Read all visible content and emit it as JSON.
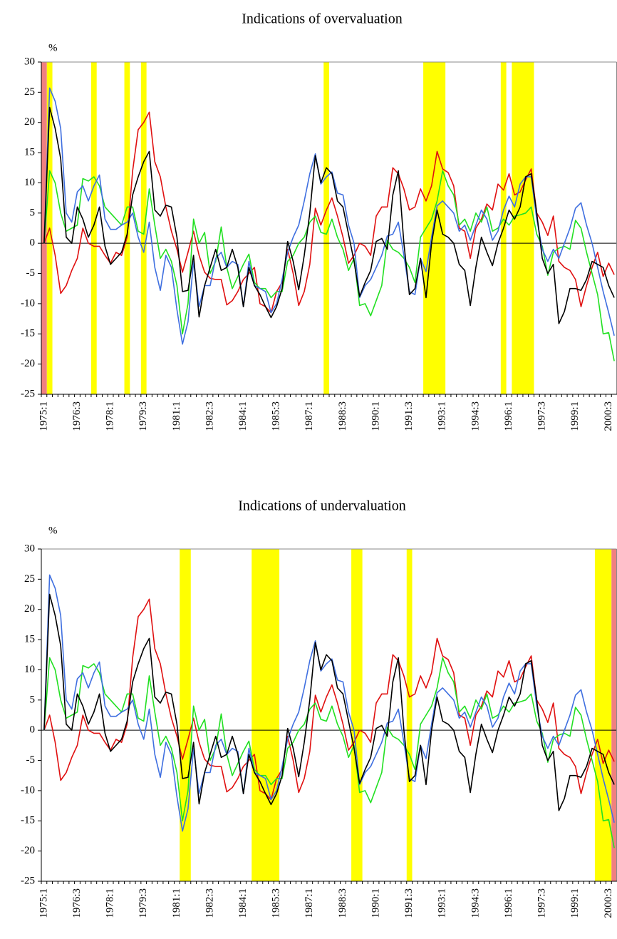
{
  "chart_data": [
    {
      "type": "line",
      "title": "Indications of overvaluation",
      "y_label": "%",
      "categories": [
        "1975:1",
        null,
        null,
        null,
        null,
        null,
        "1976:3",
        null,
        null,
        null,
        null,
        null,
        "1978:1",
        null,
        null,
        null,
        null,
        null,
        "1979:3",
        null,
        null,
        null,
        null,
        null,
        "1981:1",
        null,
        null,
        null,
        null,
        null,
        "1982:3",
        null,
        null,
        null,
        null,
        null,
        "1984:1",
        null,
        null,
        null,
        null,
        null,
        "1985:3",
        null,
        null,
        null,
        null,
        null,
        "1987:1",
        null,
        null,
        null,
        null,
        null,
        "1988:3",
        null,
        null,
        null,
        null,
        null,
        "1990:1",
        null,
        null,
        null,
        null,
        null,
        "1991:3",
        null,
        null,
        null,
        null,
        null,
        "1993:1",
        null,
        null,
        null,
        null,
        null,
        "1994:3",
        null,
        null,
        null,
        null,
        null,
        "1996:1",
        null,
        null,
        null,
        null,
        null,
        "1997:3",
        null,
        null,
        null,
        null,
        null,
        "1999:1",
        null,
        null,
        null,
        null,
        null,
        "2000:3",
        null
      ],
      "series": [
        {
          "color": "#e01010",
          "values": [
            0,
            2.5,
            -2,
            -8.3,
            -7,
            -4.5,
            -2.5,
            2.5,
            0,
            -0.5,
            -0.5,
            -2,
            -3.3,
            -1.5,
            -2,
            1,
            12,
            18.8,
            20,
            21.7,
            13.5,
            11,
            6,
            2,
            -1,
            -4.8,
            -1.5,
            2,
            -2,
            -4.8,
            -5.8,
            -6,
            -6,
            -10.2,
            -9.5,
            -8,
            -6,
            -5,
            -4,
            -10,
            -10.5,
            -11.5,
            -8,
            -6.5,
            -1,
            -5,
            -10.3,
            -8,
            -3.5,
            5.8,
            3,
            5.5,
            7.5,
            4.5,
            1,
            -3.3,
            -2,
            0,
            -0.5,
            -2,
            4.5,
            6,
            6,
            12.5,
            11.5,
            9,
            5.5,
            6,
            9,
            7,
            9.5,
            15.2,
            12.3,
            11.7,
            9.5,
            2.5,
            2,
            -2.5,
            2.5,
            4,
            6.5,
            5.5,
            9.8,
            8.8,
            11.5,
            8,
            8.5,
            10.5,
            12.3,
            5,
            3.5,
            1.3,
            4.5,
            -3,
            -4,
            -4.5,
            -6,
            -10.5,
            -7,
            -4,
            -1.5,
            -5.5,
            -3.3,
            -5.2
          ]
        },
        {
          "color": "#22e022",
          "values": [
            0,
            12,
            10,
            5,
            2,
            2.5,
            3,
            10.7,
            10.3,
            11,
            9.5,
            6,
            5,
            4,
            3,
            6,
            6,
            2,
            1.5,
            9,
            3,
            -2.5,
            -1,
            -3,
            -7,
            -15,
            -10,
            4,
            0,
            1.8,
            -5,
            -3,
            2.7,
            -4,
            -7.5,
            -5.5,
            -3.5,
            -1.8,
            -6.5,
            -7.5,
            -7.5,
            -9,
            -8,
            -8,
            -3,
            -2,
            0,
            1,
            3.5,
            4.5,
            1.8,
            1.5,
            4,
            1,
            -1,
            -4.5,
            -2.5,
            -10.3,
            -10,
            -12,
            -9.5,
            -7,
            0.5,
            -1,
            -1.5,
            -2.5,
            -4,
            -6.5,
            1,
            2.5,
            4,
            7,
            12,
            9.5,
            8,
            3,
            4,
            2,
            5,
            3.5,
            6,
            2,
            2.5,
            4,
            3,
            4.5,
            4.7,
            5,
            6,
            1.5,
            -0.5,
            -5.3,
            -1.5,
            -0.8,
            -0.5,
            -1,
            3.8,
            2.5,
            -1.5,
            -5,
            -8.5,
            -15,
            -14.8,
            -19.5
          ]
        },
        {
          "color": "#3f6fe0",
          "values": [
            0,
            25.7,
            23.5,
            19,
            5,
            3.5,
            8.5,
            9.5,
            7,
            9.5,
            11.3,
            4,
            2.3,
            2.3,
            3,
            3.5,
            5,
            1,
            -1.5,
            3.5,
            -4,
            -7.8,
            -2,
            -4,
            -11,
            -16.7,
            -13,
            -3,
            -10.5,
            -7,
            -7,
            -2.5,
            -1.5,
            -4,
            -3,
            -3.5,
            -10.5,
            -3,
            -7,
            -7.5,
            -8,
            -11.5,
            -10,
            -6,
            -1.5,
            1,
            3,
            7,
            11.5,
            14.8,
            9.8,
            11,
            11.8,
            8.3,
            8,
            3,
            0,
            -9,
            -7,
            -6,
            -4,
            -2,
            1.2,
            1.5,
            3.5,
            -2,
            -8,
            -8.5,
            -2.5,
            -4.7,
            1,
            6.2,
            7,
            6,
            5,
            2,
            3,
            0.5,
            3,
            5.5,
            4,
            0.5,
            2,
            5.5,
            7.8,
            6,
            9.8,
            11,
            11,
            4,
            -1,
            -3,
            -1,
            -2.5,
            0,
            2.5,
            5.8,
            6.7,
            3,
            0,
            -4,
            -8,
            -11.5,
            -15.3
          ]
        },
        {
          "color": "#000000",
          "values": [
            0,
            22.5,
            19,
            14,
            1,
            0,
            6,
            4,
            1,
            3,
            6,
            -0.5,
            -3.5,
            -2.5,
            -1.5,
            1.5,
            8,
            11,
            13.5,
            15.2,
            5.5,
            4.5,
            6.3,
            6,
            1,
            -8,
            -7.8,
            -2,
            -12.2,
            -7,
            -4,
            -1,
            -4.5,
            -4,
            -1,
            -4,
            -10.5,
            -4,
            -7,
            -8.5,
            -10.5,
            -12.3,
            -10.5,
            -7.5,
            0.3,
            -3,
            -7.7,
            -2,
            5,
            14.5,
            10,
            12.5,
            11.5,
            7,
            6,
            1.5,
            -3,
            -8.8,
            -6.5,
            -4.5,
            0.3,
            0.8,
            -1,
            8,
            12,
            0,
            -8.5,
            -7.5,
            -2.5,
            -9,
            0,
            5.5,
            1.5,
            1,
            0,
            -3.5,
            -4.5,
            -10.3,
            -4,
            1,
            -1.5,
            -3.7,
            0,
            2.5,
            5.5,
            4,
            6,
            11,
            11.5,
            5,
            -2.5,
            -5,
            -3.5,
            -13.3,
            -11.3,
            -7.5,
            -7.5,
            -7.8,
            -6,
            -3,
            -3.5,
            -4,
            -7,
            -9
          ]
        }
      ],
      "ylim": [
        -25,
        30
      ],
      "yticks": [
        -25,
        -20,
        -15,
        -10,
        -5,
        0,
        5,
        10,
        15,
        20,
        25,
        30
      ],
      "zero_line": true,
      "bands": [
        {
          "from": 0,
          "to": 0,
          "color": "#f08080"
        },
        {
          "from": 1,
          "to": 1,
          "color": "#ffff00"
        },
        {
          "from": 9,
          "to": 9,
          "color": "#ffff00"
        },
        {
          "from": 15,
          "to": 15,
          "color": "#ffff00"
        },
        {
          "from": 18,
          "to": 18,
          "color": "#ffff00"
        },
        {
          "from": 51,
          "to": 51,
          "color": "#ffff00"
        },
        {
          "from": 69,
          "to": 72,
          "color": "#ffff00"
        },
        {
          "from": 83,
          "to": 83,
          "color": "#ffff00"
        },
        {
          "from": 85,
          "to": 88,
          "color": "#ffff00"
        }
      ]
    },
    {
      "type": "line",
      "title": "Indications of undervaluation",
      "y_label": "%",
      "categories": [
        "1975:1",
        null,
        null,
        null,
        null,
        null,
        "1976:3",
        null,
        null,
        null,
        null,
        null,
        "1978:1",
        null,
        null,
        null,
        null,
        null,
        "1979:3",
        null,
        null,
        null,
        null,
        null,
        "1981:1",
        null,
        null,
        null,
        null,
        null,
        "1982:3",
        null,
        null,
        null,
        null,
        null,
        "1984:1",
        null,
        null,
        null,
        null,
        null,
        "1985:3",
        null,
        null,
        null,
        null,
        null,
        "1987:1",
        null,
        null,
        null,
        null,
        null,
        "1988:3",
        null,
        null,
        null,
        null,
        null,
        "1990:1",
        null,
        null,
        null,
        null,
        null,
        "1991:3",
        null,
        null,
        null,
        null,
        null,
        "1993:1",
        null,
        null,
        null,
        null,
        null,
        "1994:3",
        null,
        null,
        null,
        null,
        null,
        "1996:1",
        null,
        null,
        null,
        null,
        null,
        "1997:3",
        null,
        null,
        null,
        null,
        null,
        "1999:1",
        null,
        null,
        null,
        null,
        null,
        "2000:3",
        null
      ],
      "series": [
        {
          "color": "#e01010",
          "values": [
            0,
            2.5,
            -2,
            -8.3,
            -7,
            -4.5,
            -2.5,
            2.5,
            0,
            -0.5,
            -0.5,
            -2,
            -3.3,
            -1.5,
            -2,
            1,
            12,
            18.8,
            20,
            21.7,
            13.5,
            11,
            6,
            2,
            -1,
            -4.8,
            -1.5,
            2,
            -2,
            -4.8,
            -5.8,
            -6,
            -6,
            -10.2,
            -9.5,
            -8,
            -6,
            -5,
            -4,
            -10,
            -10.5,
            -11.5,
            -8,
            -6.5,
            -1,
            -5,
            -10.3,
            -8,
            -3.5,
            5.8,
            3,
            5.5,
            7.5,
            4.5,
            1,
            -3.3,
            -2,
            0,
            -0.5,
            -2,
            4.5,
            6,
            6,
            12.5,
            11.5,
            9,
            5.5,
            6,
            9,
            7,
            9.5,
            15.2,
            12.3,
            11.7,
            9.5,
            2.5,
            2,
            -2.5,
            2.5,
            4,
            6.5,
            5.5,
            9.8,
            8.8,
            11.5,
            8,
            8.5,
            10.5,
            12.3,
            5,
            3.5,
            1.3,
            4.5,
            -3,
            -4,
            -4.5,
            -6,
            -10.5,
            -7,
            -4,
            -1.5,
            -5.5,
            -3.3,
            -5.2
          ]
        },
        {
          "color": "#22e022",
          "values": [
            0,
            12,
            10,
            5,
            2,
            2.5,
            3,
            10.7,
            10.3,
            11,
            9.5,
            6,
            5,
            4,
            3,
            6,
            6,
            2,
            1.5,
            9,
            3,
            -2.5,
            -1,
            -3,
            -7,
            -15,
            -10,
            4,
            0,
            1.8,
            -5,
            -3,
            2.7,
            -4,
            -7.5,
            -5.5,
            -3.5,
            -1.8,
            -6.5,
            -7.5,
            -7.5,
            -9,
            -8,
            -8,
            -3,
            -2,
            0,
            1,
            3.5,
            4.5,
            1.8,
            1.5,
            4,
            1,
            -1,
            -4.5,
            -2.5,
            -10.3,
            -10,
            -12,
            -9.5,
            -7,
            0.5,
            -1,
            -1.5,
            -2.5,
            -4,
            -6.5,
            1,
            2.5,
            4,
            7,
            12,
            9.5,
            8,
            3,
            4,
            2,
            5,
            3.5,
            6,
            2,
            2.5,
            4,
            3,
            4.5,
            4.7,
            5,
            6,
            1.5,
            -0.5,
            -5.3,
            -1.5,
            -0.8,
            -0.5,
            -1,
            3.8,
            2.5,
            -1.5,
            -5,
            -8.5,
            -15,
            -14.8,
            -19.5
          ]
        },
        {
          "color": "#3f6fe0",
          "values": [
            0,
            25.7,
            23.5,
            19,
            5,
            3.5,
            8.5,
            9.5,
            7,
            9.5,
            11.3,
            4,
            2.3,
            2.3,
            3,
            3.5,
            5,
            1,
            -1.5,
            3.5,
            -4,
            -7.8,
            -2,
            -4,
            -11,
            -16.7,
            -13,
            -3,
            -10.5,
            -7,
            -7,
            -2.5,
            -1.5,
            -4,
            -3,
            -3.5,
            -10.5,
            -3,
            -7,
            -7.5,
            -8,
            -11.5,
            -10,
            -6,
            -1.5,
            1,
            3,
            7,
            11.5,
            14.8,
            9.8,
            11,
            11.8,
            8.3,
            8,
            3,
            0,
            -9,
            -7,
            -6,
            -4,
            -2,
            1.2,
            1.5,
            3.5,
            -2,
            -8,
            -8.5,
            -2.5,
            -4.7,
            1,
            6.2,
            7,
            6,
            5,
            2,
            3,
            0.5,
            3,
            5.5,
            4,
            0.5,
            2,
            5.5,
            7.8,
            6,
            9.8,
            11,
            11,
            4,
            -1,
            -3,
            -1,
            -2.5,
            0,
            2.5,
            5.8,
            6.7,
            3,
            0,
            -4,
            -8,
            -11.5,
            -15.3
          ]
        },
        {
          "color": "#000000",
          "values": [
            0,
            22.5,
            19,
            14,
            1,
            0,
            6,
            4,
            1,
            3,
            6,
            -0.5,
            -3.5,
            -2.5,
            -1.5,
            1.5,
            8,
            11,
            13.5,
            15.2,
            5.5,
            4.5,
            6.3,
            6,
            1,
            -8,
            -7.8,
            -2,
            -12.2,
            -7,
            -4,
            -1,
            -4.5,
            -4,
            -1,
            -4,
            -10.5,
            -4,
            -7,
            -8.5,
            -10.5,
            -12.3,
            -10.5,
            -7.5,
            0.3,
            -3,
            -7.7,
            -2,
            5,
            14.5,
            10,
            12.5,
            11.5,
            7,
            6,
            1.5,
            -3,
            -8.8,
            -6.5,
            -4.5,
            0.3,
            0.8,
            -1,
            8,
            12,
            0,
            -8.5,
            -7.5,
            -2.5,
            -9,
            0,
            5.5,
            1.5,
            1,
            0,
            -3.5,
            -4.5,
            -10.3,
            -4,
            1,
            -1.5,
            -3.7,
            0,
            2.5,
            5.5,
            4,
            6,
            11,
            11.5,
            5,
            -2.5,
            -5,
            -3.5,
            -13.3,
            -11.3,
            -7.5,
            -7.5,
            -7.8,
            -6,
            -3,
            -3.5,
            -4,
            -7,
            -9
          ]
        }
      ],
      "ylim": [
        -25,
        30
      ],
      "yticks": [
        -25,
        -20,
        -15,
        -10,
        -5,
        0,
        5,
        10,
        15,
        20,
        25,
        30
      ],
      "zero_line": true,
      "bands": [
        {
          "from": 25,
          "to": 26,
          "color": "#ffff00"
        },
        {
          "from": 38,
          "to": 42,
          "color": "#ffff00"
        },
        {
          "from": 56,
          "to": 57,
          "color": "#ffff00"
        },
        {
          "from": 66,
          "to": 66,
          "color": "#ffff00"
        },
        {
          "from": 100,
          "to": 102,
          "color": "#ffff00"
        },
        {
          "from": 103,
          "to": 103,
          "color": "#f08080"
        }
      ]
    }
  ]
}
